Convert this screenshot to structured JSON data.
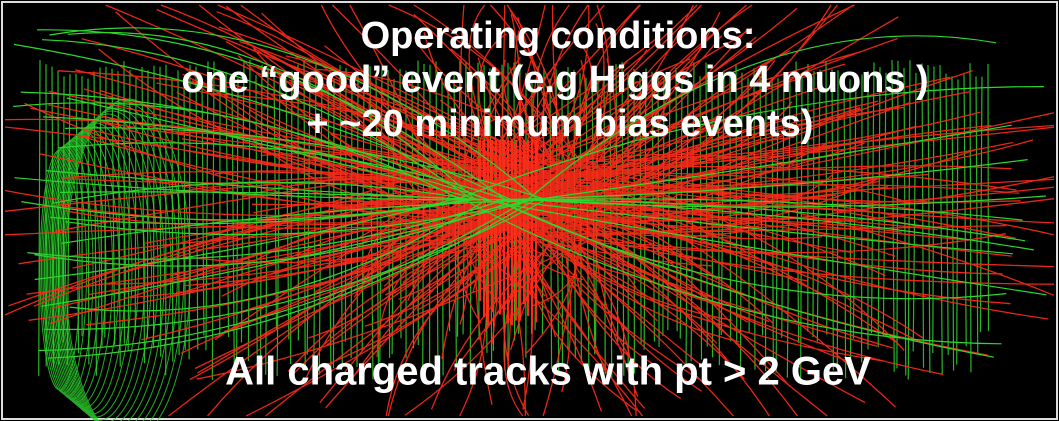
{
  "caption": {
    "lines": [
      "Operating conditions:",
      "one “good” event (e.g Higgs in 4 muons )",
      "+ ~20 minimum bias events)"
    ]
  },
  "footer": "All charged tracks with pt > 2 GeV"
}
